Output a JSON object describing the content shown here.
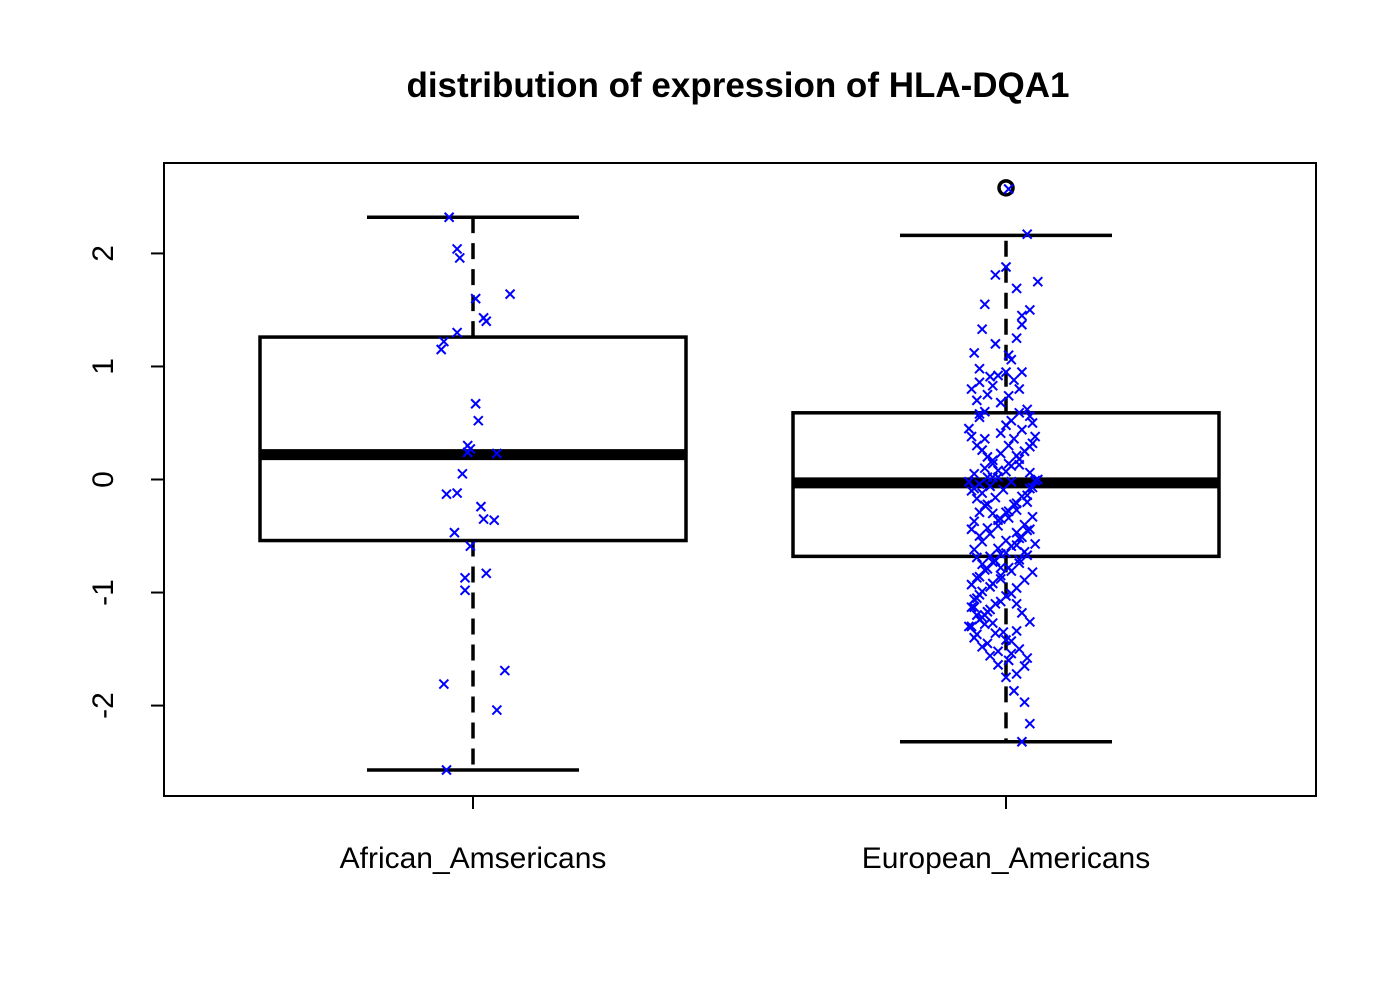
{
  "chart_data": {
    "type": "box",
    "title": "distribution of expression of HLA-DQA1",
    "xlabel": "",
    "ylabel": "",
    "ylim": [
      -2.8,
      2.8
    ],
    "y_ticks": [
      -2,
      -1,
      0,
      1,
      2
    ],
    "y_tick_labels": [
      "-2",
      "-1",
      "0",
      "1",
      "2"
    ],
    "categories": [
      "African_Amsericans",
      "European_Americans"
    ],
    "grid": false,
    "legend": "none",
    "colors": {
      "box": "#000000",
      "points": "#0000ff"
    },
    "boxes": [
      {
        "category": "African_Amsericans",
        "whisker_low": -2.57,
        "q1": -0.54,
        "median": 0.22,
        "q3": 1.26,
        "whisker_high": 2.32,
        "outliers": []
      },
      {
        "category": "European_Americans",
        "whisker_low": -2.32,
        "q1": -0.68,
        "median": -0.03,
        "q3": 0.59,
        "whisker_high": 2.16,
        "outliers": [
          2.58
        ]
      }
    ],
    "points": [
      {
        "category": "African_Amsericans",
        "jitter": [
          -0.09,
          -0.06,
          -0.05,
          -0.11,
          -0.12,
          -0.06,
          0.01,
          0.04,
          0.14,
          0.05,
          0.01,
          0.02,
          -0.02,
          -0.01,
          0.09,
          -0.02,
          -0.04,
          -0.1,
          -0.06,
          -0.07,
          0.04,
          0.08,
          0.03,
          -0.01,
          -0.03,
          -0.03,
          0.05,
          -0.11,
          0.12,
          0.09,
          -0.1
        ],
        "y": [
          2.32,
          2.04,
          1.96,
          1.22,
          1.15,
          1.3,
          1.6,
          1.43,
          1.64,
          1.4,
          0.67,
          0.52,
          0.3,
          0.27,
          0.23,
          0.24,
          0.05,
          -0.13,
          -0.12,
          -0.47,
          -0.35,
          -0.36,
          -0.24,
          -0.59,
          -0.87,
          -0.98,
          -0.83,
          -1.81,
          -1.69,
          -2.04,
          -2.57
        ]
      },
      {
        "category": "European_Americans",
        "jitter": [
          0.01,
          0.08,
          0.0,
          0.04,
          0.12,
          0.09,
          -0.04,
          -0.08,
          -0.09,
          -0.12,
          -0.1,
          0.06,
          0.04,
          -0.04,
          0.01,
          0.06,
          0.02,
          -0.06,
          -0.1,
          -0.13,
          -0.11,
          -0.07,
          -0.05,
          -0.03,
          0.0,
          0.03,
          0.06,
          0.05,
          0.01,
          -0.02,
          -0.08,
          -0.1,
          -0.14,
          -0.13,
          -0.11,
          -0.09,
          -0.07,
          -0.05,
          -0.02,
          0.0,
          0.02,
          0.05,
          0.08,
          0.09,
          0.1,
          0.06,
          0.03,
          0.01,
          -0.02,
          -0.05,
          -0.08,
          -0.12,
          -0.14,
          -0.12,
          -0.09,
          -0.06,
          -0.03,
          0.0,
          0.02,
          0.05,
          0.07,
          0.1,
          0.11,
          0.09,
          0.04,
          0.01,
          -0.03,
          -0.07,
          -0.1,
          -0.13,
          -0.11,
          -0.08,
          -0.05,
          -0.02,
          0.01,
          0.04,
          0.08,
          0.1,
          0.12,
          0.09,
          0.05,
          0.02,
          -0.01,
          -0.04,
          -0.07,
          -0.1,
          -0.12,
          -0.13,
          -0.1,
          -0.07,
          -0.03,
          0.0,
          0.03,
          0.06,
          0.09,
          0.11,
          0.08,
          0.04,
          0.01,
          -0.03,
          -0.06,
          -0.09,
          -0.12,
          -0.11,
          -0.09,
          -0.06,
          -0.03,
          0.0,
          0.04,
          0.07,
          0.1,
          0.08,
          0.05,
          0.02,
          -0.02,
          -0.05,
          -0.08,
          -0.11,
          -0.13,
          -0.1,
          -0.07,
          -0.04,
          0.0,
          0.04,
          0.06,
          0.09,
          0.11,
          0.07,
          0.05,
          0.01,
          -0.02,
          -0.05,
          -0.09,
          -0.12,
          -0.12,
          -0.1,
          -0.06,
          -0.02,
          0.02,
          0.05,
          0.08,
          0.1,
          0.07,
          0.04,
          0.0,
          -0.04,
          -0.07,
          -0.1,
          -0.13,
          -0.09,
          -0.06,
          -0.02,
          0.02,
          0.04,
          0.06,
          0.09,
          0.04,
          0.0,
          -0.04,
          -0.08,
          -0.11,
          -0.13,
          -0.11,
          -0.08,
          -0.05,
          -0.01,
          0.02,
          0.05,
          0.08,
          0.07,
          0.04,
          0.01,
          -0.03,
          -0.07,
          -0.11,
          -0.14,
          -0.12,
          -0.09,
          -0.06,
          -0.03,
          0.0,
          0.03,
          0.07,
          0.09,
          0.06,
          0.02,
          -0.02,
          -0.05,
          -0.08,
          -0.1,
          -0.05,
          0.02,
          0.06,
          0.07
        ],
        "y": [
          2.57,
          2.17,
          1.88,
          1.69,
          1.75,
          1.5,
          1.81,
          1.55,
          1.33,
          1.12,
          0.98,
          1.45,
          1.25,
          1.2,
          1.1,
          1.37,
          1.06,
          0.91,
          0.86,
          0.8,
          0.7,
          0.75,
          0.83,
          0.92,
          0.95,
          0.88,
          0.95,
          0.8,
          0.74,
          0.68,
          0.6,
          0.55,
          0.45,
          0.38,
          0.3,
          0.26,
          0.2,
          0.14,
          0.41,
          0.48,
          0.52,
          0.59,
          0.62,
          0.56,
          0.5,
          0.44,
          0.36,
          0.3,
          0.23,
          0.17,
          0.1,
          0.05,
          -0.02,
          -0.08,
          -0.12,
          -0.06,
          0.02,
          0.07,
          0.12,
          0.18,
          0.25,
          0.32,
          0.38,
          0.29,
          0.21,
          0.14,
          0.08,
          0.02,
          -0.04,
          -0.1,
          -0.17,
          -0.23,
          -0.3,
          -0.35,
          -0.28,
          -0.21,
          -0.14,
          -0.07,
          0.0,
          0.06,
          0.13,
          -0.02,
          -0.09,
          -0.16,
          -0.22,
          -0.29,
          -0.37,
          -0.44,
          -0.5,
          -0.43,
          -0.36,
          -0.29,
          -0.22,
          -0.15,
          -0.08,
          -0.01,
          -0.2,
          -0.27,
          -0.34,
          -0.41,
          -0.48,
          -0.55,
          -0.62,
          -0.69,
          -0.75,
          -0.68,
          -0.61,
          -0.54,
          -0.47,
          -0.4,
          -0.33,
          -0.45,
          -0.52,
          -0.59,
          -0.66,
          -0.73,
          -0.8,
          -0.87,
          -0.93,
          -0.86,
          -0.79,
          -0.72,
          -0.65,
          -0.58,
          -0.51,
          -0.44,
          -0.57,
          -0.64,
          -0.71,
          -0.78,
          -0.85,
          -0.92,
          -0.99,
          -1.06,
          -1.13,
          -1.02,
          -0.95,
          -0.88,
          -0.81,
          -0.74,
          -0.67,
          -0.82,
          -0.89,
          -0.96,
          -1.03,
          -1.1,
          -1.17,
          -1.24,
          -1.3,
          -1.22,
          -1.15,
          -1.08,
          -1.01,
          -1.1,
          -1.18,
          -1.26,
          -1.34,
          -1.42,
          -1.36,
          -1.28,
          -1.2,
          -1.13,
          -1.05,
          -1.2,
          -1.27,
          -1.35,
          -1.43,
          -1.5,
          -1.58,
          -1.65,
          -1.72,
          -1.6,
          -1.52,
          -1.45,
          -1.37,
          -1.3,
          -1.4,
          -1.48,
          -1.56,
          -1.64,
          -1.75,
          -1.87,
          -1.97,
          -2.16,
          -2.32,
          -1.54,
          -0.78,
          0.02,
          0.36,
          0.58
        ]
      }
    ]
  }
}
